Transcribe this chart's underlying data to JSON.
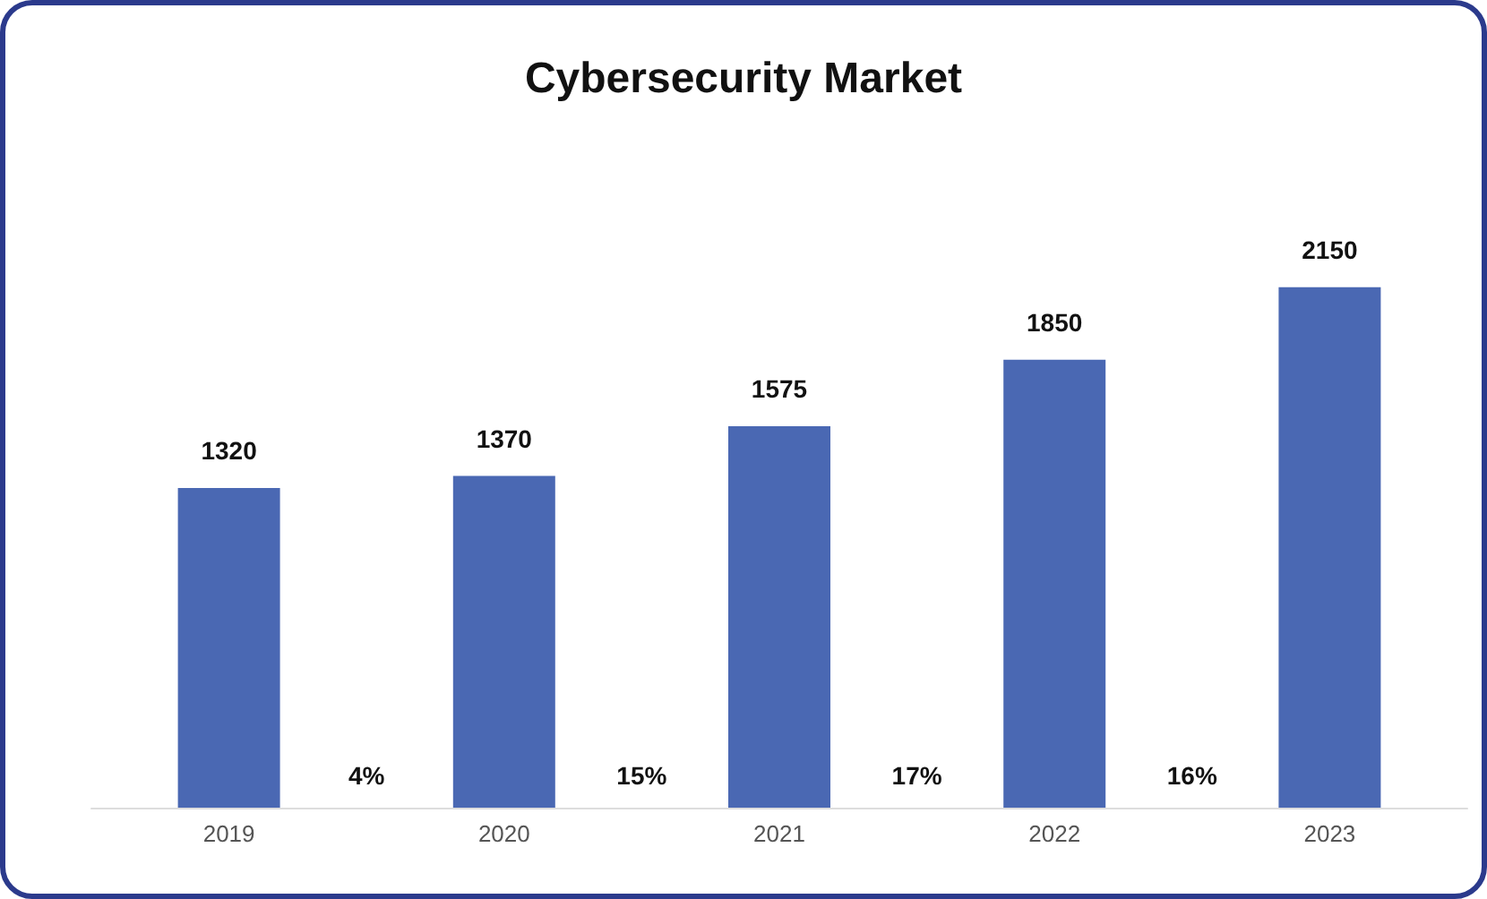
{
  "chart_data": {
    "type": "bar",
    "title": "Cybersecurity Market",
    "categories": [
      "2019",
      "2020",
      "2021",
      "2022",
      "2023"
    ],
    "values": [
      1320,
      1370,
      1575,
      1850,
      2150
    ],
    "color": "#4a68b3",
    "data_labels": true,
    "annotations": [
      "4%",
      "15%",
      "17%",
      "16%"
    ]
  }
}
